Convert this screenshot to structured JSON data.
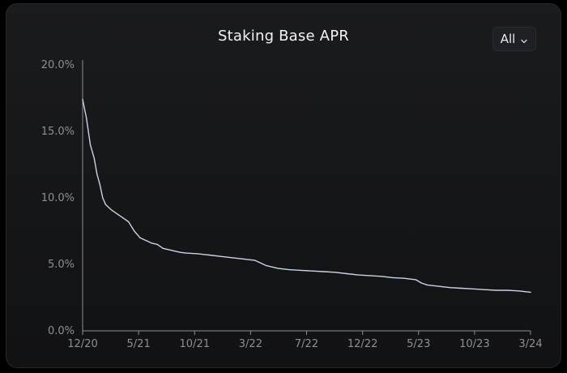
{
  "header": {
    "title": "Staking Base APR",
    "range_selector": {
      "selected": "All",
      "icon": "chevron-down-icon"
    }
  },
  "colors": {
    "background": "#141517",
    "line": "#c9d3e8",
    "axis": "#8c8f96"
  },
  "chart_data": {
    "type": "line",
    "title": "Staking Base APR",
    "xlabel": "",
    "ylabel": "",
    "ylim": [
      0,
      20
    ],
    "y_ticks": [
      "0.0%",
      "5.0%",
      "10.0%",
      "15.0%",
      "20.0%"
    ],
    "y_tick_values": [
      0,
      5,
      10,
      15,
      20
    ],
    "x_ticks": [
      "12/20",
      "5/21",
      "10/21",
      "3/22",
      "7/22",
      "12/22",
      "5/23",
      "10/23",
      "3/24"
    ],
    "grid": false,
    "legend": "none",
    "series": [
      {
        "x": [
          "12/20",
          "12/20",
          "12/20",
          "1/21",
          "1/21",
          "1/21",
          "1/21",
          "2/21",
          "2/21",
          "3/21",
          "3/21",
          "4/21",
          "4/21",
          "5/21",
          "5/21",
          "6/21",
          "6/21",
          "7/21",
          "8/21",
          "8/21",
          "9/21",
          "10/21",
          "11/21",
          "12/21",
          "1/22",
          "2/22",
          "3/22",
          "3/22",
          "4/22",
          "5/22",
          "6/22",
          "7/22",
          "8/22",
          "9/22",
          "10/22",
          "11/22",
          "12/22",
          "1/23",
          "2/23",
          "3/23",
          "4/23",
          "5/23",
          "5/23",
          "6/23",
          "7/23",
          "8/23",
          "9/23",
          "10/23",
          "11/23",
          "12/23",
          "1/24",
          "2/24",
          "3/24"
        ],
        "values": [
          17.4,
          16.0,
          14.0,
          13.0,
          11.8,
          11.0,
          10.0,
          9.5,
          9.1,
          8.8,
          8.5,
          8.2,
          7.5,
          7.0,
          6.8,
          6.6,
          6.5,
          6.2,
          6.0,
          5.9,
          5.85,
          5.8,
          5.7,
          5.6,
          5.5,
          5.4,
          5.3,
          5.1,
          4.9,
          4.7,
          4.6,
          4.55,
          4.5,
          4.45,
          4.4,
          4.3,
          4.2,
          4.15,
          4.1,
          4.0,
          3.95,
          3.85,
          3.6,
          3.45,
          3.35,
          3.25,
          3.2,
          3.15,
          3.1,
          3.05,
          3.05,
          3.0,
          2.9
        ]
      }
    ]
  }
}
